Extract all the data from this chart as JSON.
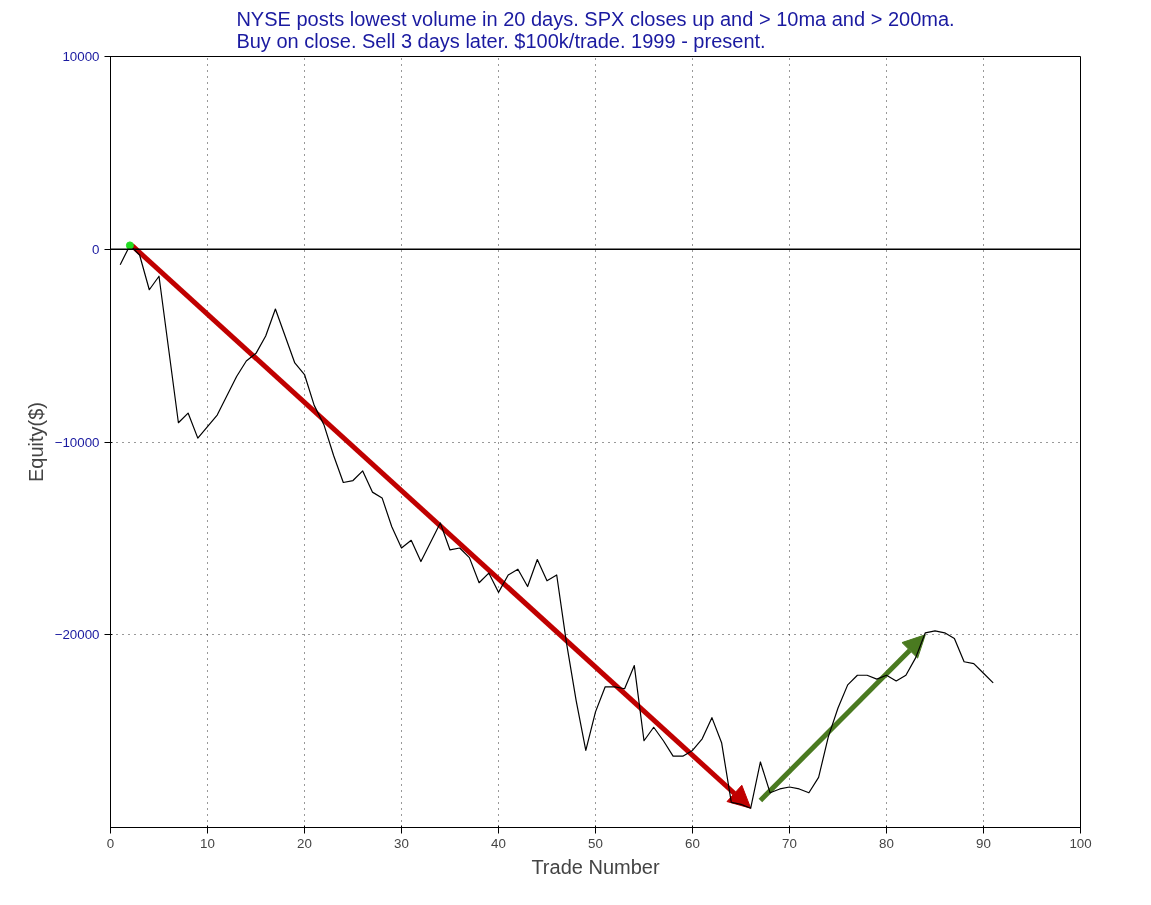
{
  "chart_data": {
    "type": "line",
    "title": "NYSE posts lowest volume in 20 days. SPX closes up and > 10ma and > 200ma.\nBuy on close. Sell 3 days later. $100k/trade. 1999 - present.",
    "xlabel": "Trade Number",
    "ylabel": "Equity($)",
    "x": [
      1,
      2,
      3,
      4,
      5,
      6,
      7,
      8,
      9,
      10,
      11,
      12,
      13,
      14,
      15,
      16,
      17,
      18,
      19,
      20,
      21,
      22,
      23,
      24,
      25,
      26,
      27,
      28,
      29,
      30,
      31,
      32,
      33,
      34,
      35,
      36,
      37,
      38,
      39,
      40,
      41,
      42,
      43,
      44,
      45,
      46,
      47,
      48,
      49,
      50,
      51,
      52,
      53,
      54,
      55,
      56,
      57,
      58,
      59,
      60,
      61,
      62,
      63,
      64,
      65,
      66,
      67,
      68,
      69,
      70,
      71,
      72,
      73,
      74,
      75,
      76,
      77,
      78,
      79,
      80,
      81,
      82,
      83,
      84,
      85,
      86,
      87,
      88,
      89,
      90,
      91
    ],
    "series": [
      {
        "color": "#000000",
        "values": [
          -800,
          200,
          -300,
          -2100,
          -1400,
          -5200,
          -9000,
          -8500,
          -9800,
          -9200,
          -8600,
          -7600,
          -6600,
          -5800,
          -5400,
          -4500,
          -3100,
          -4500,
          -5900,
          -6500,
          -8100,
          -9100,
          -10700,
          -12100,
          -12000,
          -11500,
          -12600,
          -12900,
          -14400,
          -15500,
          -15100,
          -16200,
          -15200,
          -14200,
          -15600,
          -15500,
          -16000,
          -17300,
          -16800,
          -17800,
          -16900,
          -16600,
          -17500,
          -16100,
          -17200,
          -16900,
          -20400,
          -23400,
          -26000,
          -24000,
          -22700,
          -22700,
          -22800,
          -21600,
          -25500,
          -24800,
          -25500,
          -26300,
          -26300,
          -26000,
          -25400,
          -24300,
          -25600,
          -28700,
          -28800,
          -29000,
          -26600,
          -28200,
          -28000,
          -27900,
          -28000,
          -28200,
          -27400,
          -25300,
          -23800,
          -22600,
          -22100,
          -22100,
          -22300,
          -22100,
          -22400,
          -22100,
          -21200,
          -19900,
          -19800,
          -19900,
          -20200,
          -21400,
          -21500,
          -22000,
          -22500
        ]
      }
    ],
    "xlim": [
      0,
      100
    ],
    "xticks": [
      0,
      10,
      20,
      30,
      40,
      50,
      60,
      70,
      80,
      90,
      100
    ],
    "ylim": [
      -30000,
      10000
    ],
    "yticks": [
      10000,
      0,
      -10000,
      -20000
    ],
    "ref_lines": [
      {
        "axis": "y",
        "value": 0,
        "color": "#000000",
        "line_style": "solid"
      }
    ],
    "grid": true,
    "line_style": "solid",
    "marker": "none"
  }
}
